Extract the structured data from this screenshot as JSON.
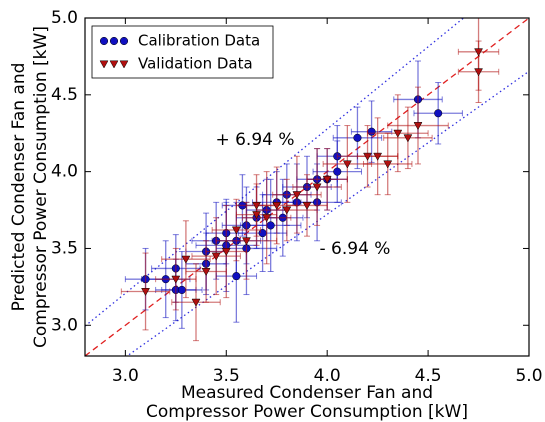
{
  "chart_data": {
    "type": "scatter",
    "xlabel": [
      "Measured Condenser Fan and",
      "Compressor Power Consumption [kW]"
    ],
    "ylabel": [
      "Predicted Condenser Fan and",
      "Compressor Power Consumption [kW]"
    ],
    "xlim": [
      2.8,
      5.0
    ],
    "ylim": [
      2.8,
      5.0
    ],
    "xticks": [
      {
        "value": 3,
        "label": "3.0"
      },
      {
        "value": 3.5,
        "label": "3.5"
      },
      {
        "value": 4,
        "label": "4.0"
      },
      {
        "value": 4.5,
        "label": "4.5"
      },
      {
        "value": 5,
        "label": "5.0"
      }
    ],
    "yticks": [
      {
        "value": 3,
        "label": "3.0"
      },
      {
        "value": 3.5,
        "label": "3.5"
      },
      {
        "value": 4,
        "label": "4.0"
      },
      {
        "value": 4.5,
        "label": "4.5"
      },
      {
        "value": 5,
        "label": "5.0"
      }
    ],
    "band_percent": 6.94,
    "annotations": [
      "+ 6.94 %",
      "- 6.94 %"
    ],
    "legend": "upper left",
    "series": [
      {
        "name": "Calibration Data",
        "color": "#1010c0",
        "marker": "circle",
        "x": [
          3.1,
          3.2,
          3.25,
          3.28,
          3.25,
          3.4,
          3.45,
          3.5,
          3.5,
          3.55,
          3.58,
          3.6,
          3.6,
          3.65,
          3.68,
          3.7,
          3.72,
          3.75,
          3.78,
          3.8,
          3.85,
          3.9,
          3.95,
          3.95,
          4.0,
          4.05,
          4.05,
          4.15,
          4.22,
          4.45,
          4.55,
          3.55,
          3.4
        ],
        "values": [
          3.3,
          3.3,
          3.23,
          3.23,
          3.37,
          3.4,
          3.55,
          3.52,
          3.6,
          3.55,
          3.78,
          3.5,
          3.65,
          3.7,
          3.6,
          3.75,
          3.65,
          3.8,
          3.7,
          3.85,
          3.8,
          3.9,
          3.95,
          3.8,
          3.95,
          4.0,
          4.1,
          4.22,
          4.26,
          4.47,
          4.38,
          3.32,
          3.48
        ],
        "xerr": [
          0.1,
          0.12,
          0.1,
          0.1,
          0.12,
          0.1,
          0.12,
          0.15,
          0.1,
          0.12,
          0.1,
          0.15,
          0.12,
          0.1,
          0.12,
          0.1,
          0.15,
          0.12,
          0.1,
          0.12,
          0.1,
          0.12,
          0.1,
          0.12,
          0.1,
          0.12,
          0.1,
          0.12,
          0.1,
          0.12,
          0.12,
          0.1,
          0.1
        ],
        "yerr": [
          0.2,
          0.25,
          0.2,
          0.25,
          0.22,
          0.2,
          0.25,
          0.3,
          0.2,
          0.25,
          0.2,
          0.3,
          0.25,
          0.2,
          0.25,
          0.2,
          0.3,
          0.2,
          0.25,
          0.2,
          0.25,
          0.2,
          0.2,
          0.25,
          0.2,
          0.2,
          0.2,
          0.2,
          0.2,
          0.25,
          0.2,
          0.3,
          0.25
        ]
      },
      {
        "name": "Validation Data",
        "color": "#b01010",
        "marker": "triangle-down",
        "x": [
          3.1,
          3.25,
          3.35,
          3.4,
          3.45,
          3.5,
          3.55,
          3.6,
          3.65,
          3.7,
          3.75,
          3.8,
          3.85,
          3.9,
          3.95,
          4.0,
          4.1,
          4.2,
          4.25,
          4.3,
          4.35,
          4.4,
          4.45,
          4.75,
          4.75,
          3.3,
          3.65
        ],
        "values": [
          3.22,
          3.3,
          3.15,
          3.35,
          3.45,
          3.48,
          3.62,
          3.55,
          3.72,
          3.7,
          3.78,
          3.75,
          3.85,
          3.78,
          3.9,
          3.95,
          4.05,
          4.1,
          4.1,
          4.05,
          4.25,
          4.22,
          4.3,
          4.78,
          4.65,
          3.43,
          3.78
        ],
        "xerr": [
          0.12,
          0.1,
          0.12,
          0.1,
          0.12,
          0.1,
          0.12,
          0.15,
          0.1,
          0.12,
          0.1,
          0.15,
          0.12,
          0.1,
          0.12,
          0.1,
          0.12,
          0.15,
          0.1,
          0.12,
          0.15,
          0.12,
          0.15,
          0.1,
          0.1,
          0.12,
          0.1
        ],
        "yerr": [
          0.25,
          0.2,
          0.25,
          0.2,
          0.25,
          0.3,
          0.2,
          0.25,
          0.2,
          0.3,
          0.25,
          0.2,
          0.25,
          0.2,
          0.25,
          0.2,
          0.25,
          0.2,
          0.25,
          0.2,
          0.25,
          0.2,
          0.25,
          0.25,
          0.2,
          0.25,
          0.2
        ]
      }
    ]
  }
}
